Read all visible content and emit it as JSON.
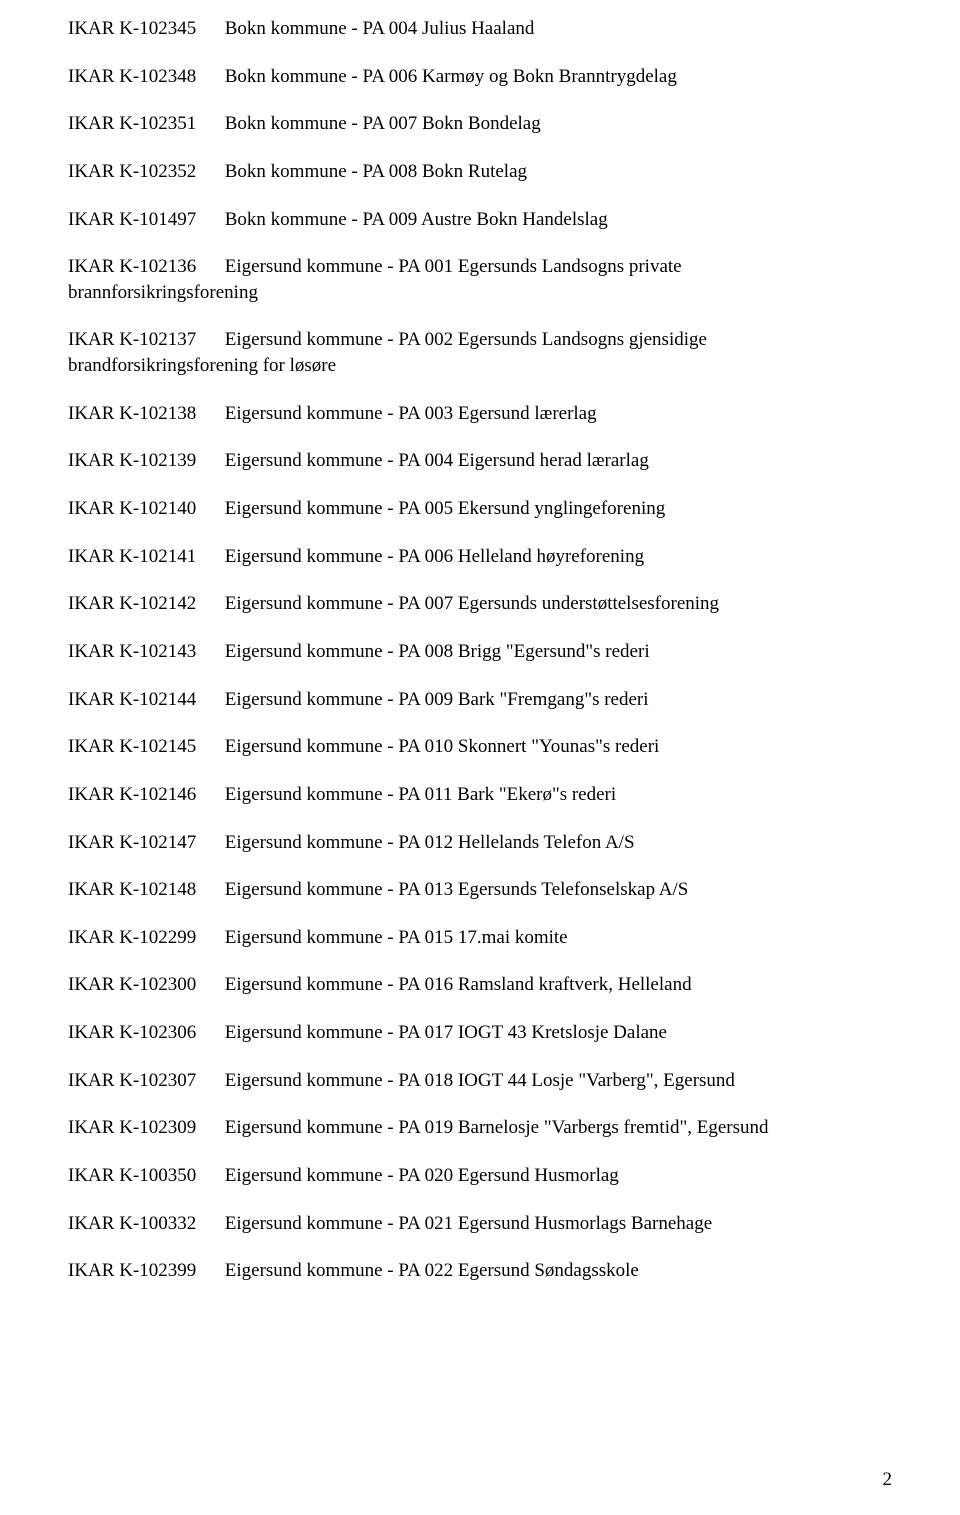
{
  "page_number": "2",
  "entries": [
    {
      "code": "IKAR  K-102345",
      "desc": "Bokn kommune - PA 004 Julius Haaland",
      "wrap": false
    },
    {
      "code": "IKAR  K-102348",
      "desc": "Bokn kommune - PA 006 Karmøy og Bokn Branntrygdelag",
      "wrap": false
    },
    {
      "code": "IKAR  K-102351",
      "desc": "Bokn kommune - PA 007 Bokn Bondelag",
      "wrap": false
    },
    {
      "code": "IKAR  K-102352",
      "desc": "Bokn kommune - PA 008 Bokn Rutelag",
      "wrap": false
    },
    {
      "code": "IKAR  K-101497",
      "desc": "Bokn kommune - PA 009 Austre Bokn Handelslag",
      "wrap": false
    },
    {
      "code": "IKAR  K-102136",
      "desc": "Eigersund kommune - PA 001 Egersunds Landsogns private",
      "wrap": true,
      "cont": "brannforsikringsforening"
    },
    {
      "code": "IKAR  K-102137",
      "desc": "Eigersund kommune - PA 002 Egersunds Landsogns gjensidige",
      "wrap": true,
      "cont": "brandforsikringsforening for løsøre"
    },
    {
      "code": "IKAR  K-102138",
      "desc": "Eigersund kommune - PA 003 Egersund lærerlag",
      "wrap": false
    },
    {
      "code": "IKAR  K-102139",
      "desc": "Eigersund kommune - PA 004 Eigersund herad lærarlag",
      "wrap": false
    },
    {
      "code": "IKAR  K-102140",
      "desc": "Eigersund kommune - PA 005 Ekersund ynglingeforening",
      "wrap": false
    },
    {
      "code": "IKAR  K-102141",
      "desc": "Eigersund kommune - PA 006 Helleland høyreforening",
      "wrap": false
    },
    {
      "code": "IKAR  K-102142",
      "desc": "Eigersund kommune - PA 007 Egersunds understøttelsesforening",
      "wrap": false
    },
    {
      "code": "IKAR  K-102143",
      "desc": "Eigersund kommune - PA 008 Brigg \"Egersund\"s rederi",
      "wrap": false
    },
    {
      "code": "IKAR  K-102144",
      "desc": "Eigersund kommune - PA 009 Bark \"Fremgang\"s rederi",
      "wrap": false
    },
    {
      "code": "IKAR  K-102145",
      "desc": "Eigersund kommune - PA 010 Skonnert \"Younas\"s rederi",
      "wrap": false
    },
    {
      "code": "IKAR  K-102146",
      "desc": "Eigersund kommune - PA 011 Bark \"Ekerø\"s rederi",
      "wrap": false
    },
    {
      "code": "IKAR  K-102147",
      "desc": "Eigersund kommune - PA 012 Hellelands Telefon A/S",
      "wrap": false
    },
    {
      "code": "IKAR  K-102148",
      "desc": "Eigersund kommune - PA 013 Egersunds Telefonselskap A/S",
      "wrap": false
    },
    {
      "code": "IKAR  K-102299",
      "desc": "Eigersund kommune - PA 015 17.mai komite",
      "wrap": false
    },
    {
      "code": "IKAR  K-102300",
      "desc": "Eigersund kommune - PA 016 Ramsland kraftverk, Helleland",
      "wrap": false
    },
    {
      "code": "IKAR  K-102306",
      "desc": "Eigersund kommune - PA 017  IOGT 43 Kretslosje Dalane",
      "wrap": false
    },
    {
      "code": "IKAR  K-102307",
      "desc": "Eigersund kommune - PA 018  IOGT 44 Losje \"Varberg\", Egersund",
      "wrap": false
    },
    {
      "code": "IKAR  K-102309",
      "desc": "Eigersund kommune - PA 019 Barnelosje \"Varbergs fremtid\", Egersund",
      "wrap": false
    },
    {
      "code": "IKAR  K-100350",
      "desc": "Eigersund kommune - PA 020 Egersund Husmorlag",
      "wrap": false
    },
    {
      "code": "IKAR  K-100332",
      "desc": "Eigersund kommune - PA 021 Egersund Husmorlags Barnehage",
      "wrap": false
    },
    {
      "code": "IKAR  K-102399",
      "desc": "Eigersund kommune - PA 022 Egersund Søndagsskole",
      "wrap": false
    }
  ]
}
